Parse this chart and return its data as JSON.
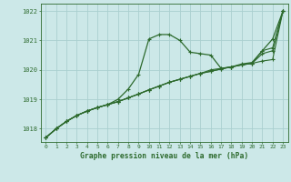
{
  "background_color": "#cce8e8",
  "grid_color": "#aacfcf",
  "line_color": "#2d6a2d",
  "title": "Graphe pression niveau de la mer (hPa)",
  "xlim": [
    -0.5,
    23.5
  ],
  "ylim": [
    1017.55,
    1022.25
  ],
  "yticks": [
    1018,
    1019,
    1020,
    1021,
    1022
  ],
  "xticks": [
    0,
    1,
    2,
    3,
    4,
    5,
    6,
    7,
    8,
    9,
    10,
    11,
    12,
    13,
    14,
    15,
    16,
    17,
    18,
    19,
    20,
    21,
    22,
    23
  ],
  "series": [
    {
      "x": [
        0,
        1,
        2,
        3,
        4,
        5,
        6,
        7,
        8,
        9,
        10,
        11,
        12,
        13,
        14,
        15,
        16,
        17,
        18,
        19,
        20,
        21,
        22,
        23
      ],
      "y": [
        1017.7,
        1018.0,
        1018.25,
        1018.45,
        1018.6,
        1018.72,
        1018.82,
        1018.92,
        1019.05,
        1019.18,
        1019.32,
        1019.45,
        1019.58,
        1019.68,
        1019.78,
        1019.88,
        1019.95,
        1020.03,
        1020.1,
        1020.17,
        1020.22,
        1020.3,
        1020.35,
        1022.0
      ],
      "marker": "+",
      "linestyle": "-",
      "linewidth": 0.8,
      "markersize": 3.5
    },
    {
      "x": [
        0,
        1,
        2,
        3,
        4,
        5,
        6,
        7,
        8,
        9,
        10,
        11,
        12,
        13,
        14,
        15,
        16,
        17,
        18,
        19,
        20,
        21,
        22,
        23
      ],
      "y": [
        1017.7,
        1018.0,
        1018.25,
        1018.45,
        1018.6,
        1018.72,
        1018.82,
        1018.92,
        1019.05,
        1019.18,
        1019.32,
        1019.45,
        1019.58,
        1019.68,
        1019.78,
        1019.88,
        1019.95,
        1020.03,
        1020.1,
        1020.17,
        1020.22,
        1020.55,
        1020.65,
        1022.0
      ],
      "marker": "+",
      "linestyle": "-",
      "linewidth": 0.8,
      "markersize": 3.5
    },
    {
      "x": [
        0,
        1,
        2,
        3,
        4,
        5,
        6,
        7,
        8,
        9,
        10,
        11,
        12,
        13,
        14,
        15,
        16,
        17,
        18,
        19,
        20,
        21,
        22,
        23
      ],
      "y": [
        1017.7,
        1018.0,
        1018.25,
        1018.45,
        1018.6,
        1018.72,
        1018.82,
        1018.92,
        1019.05,
        1019.18,
        1019.32,
        1019.45,
        1019.58,
        1019.68,
        1019.78,
        1019.88,
        1020.0,
        1020.05,
        1020.1,
        1020.17,
        1020.22,
        1020.65,
        1020.75,
        1022.0
      ],
      "marker": "+",
      "linestyle": "-",
      "linewidth": 0.8,
      "markersize": 3.5
    },
    {
      "x": [
        0,
        1,
        2,
        3,
        4,
        5,
        6,
        7,
        8,
        9,
        10,
        11,
        12,
        13,
        14,
        15,
        16,
        17,
        18,
        19,
        20,
        21,
        22,
        23
      ],
      "y": [
        1017.7,
        1018.0,
        1018.25,
        1018.45,
        1018.6,
        1018.72,
        1018.82,
        1019.0,
        1019.35,
        1019.85,
        1021.05,
        1021.2,
        1021.2,
        1021.0,
        1020.6,
        1020.55,
        1020.5,
        1020.05,
        1020.1,
        1020.2,
        1020.25,
        1020.65,
        1021.05,
        1022.0
      ],
      "marker": "+",
      "linestyle": "-",
      "linewidth": 0.9,
      "markersize": 3.5
    }
  ]
}
